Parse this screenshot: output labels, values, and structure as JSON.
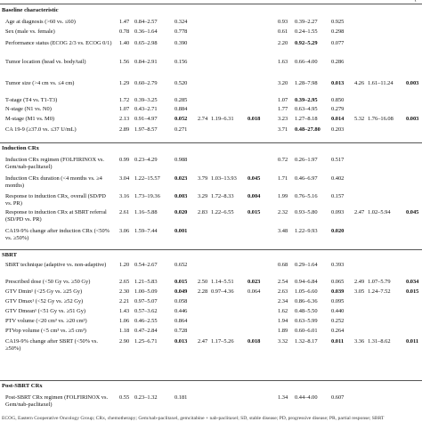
{
  "header_fragment": "p",
  "sections": [
    {
      "title": "Baseline characteristic",
      "rows": [
        {
          "label": "Age at diagnosis (>60 vs. ≤60)",
          "cells": [
            "1.47",
            "0.84–2.57",
            "0.324",
            "",
            "",
            "",
            "0.93",
            "0.39–2.27",
            "0.925",
            "",
            "",
            ""
          ]
        },
        {
          "label": "Sex (male vs. female)",
          "cells": [
            "0.78",
            "0.36–1.64",
            "0.778",
            "",
            "",
            "",
            "0.61",
            "0.24–1.55",
            "0.298",
            "",
            "",
            ""
          ]
        },
        {
          "label": "Performance status (ECOG 2/3 vs. ECOG 0/1)",
          "cells": [
            "1.40",
            "0.65–2.98",
            "0.390",
            "",
            "",
            "",
            "2.20",
            "0.92–5.29",
            "0.077",
            "",
            "",
            ""
          ]
        },
        {
          "label": "Tumor location (head vs. body/tail)",
          "cells": [
            "1.56",
            "0.84–2.91",
            "0.156",
            "",
            "",
            "",
            "1.63",
            "0.66–4.00",
            "0.286",
            "",
            "",
            ""
          ]
        },
        {
          "label": "Tumor size (>4 cm vs. ≤4 cm)",
          "cells": [
            "1.29",
            "0.60–2.79",
            "0.520",
            "",
            "",
            "",
            "3.20",
            "1.28–7.98",
            "0.013",
            "4.26",
            "1.61–11.24",
            "0.003"
          ]
        },
        {
          "label": "T-stage (T4 vs. T1-T3)",
          "cells": [
            "1.72",
            "0.39–3.25",
            "0.285",
            "",
            "",
            "",
            "1.07",
            "0.39–2.95",
            "0.850",
            "",
            "",
            ""
          ]
        },
        {
          "label": "N-stage (N1 vs. N0)",
          "cells": [
            "1.07",
            "0.43–2.71",
            "0.884",
            "",
            "",
            "",
            "1.77",
            "0.63–4.95",
            "0.279",
            "",
            "",
            ""
          ]
        },
        {
          "label": "M-stage (M1 vs. M0)",
          "cells": [
            "2.13",
            "0.91–4.97",
            "0.052",
            "2.74",
            "1.19–6.31",
            "0.018",
            "3.23",
            "1.27–8.18",
            "0.014",
            "5.32",
            "1.76–16.08",
            "0.003"
          ]
        },
        {
          "label": "CA 19-9 (≥37.0 vs. ≤37 U/mL)",
          "cells": [
            "2.89",
            "1.97–8.57",
            "0.271",
            "",
            "",
            "",
            "3.71",
            "0.48–27.80",
            "0.203",
            "",
            "",
            ""
          ]
        }
      ]
    },
    {
      "title": "Induction CRx",
      "rows": [
        {
          "label": "Induction CRx regimen (FOLFIRINOX vs. Gem/nab-paclitaxel)",
          "cells": [
            "0.99",
            "0.23–4.29",
            "0.988",
            "",
            "",
            "",
            "0.72",
            "0.26–1.97",
            "0.517",
            "",
            "",
            ""
          ]
        },
        {
          "label": "Induction CRx duration (<4 months vs. ≥4 months)",
          "cells": [
            "3.04",
            "1.22–15.57",
            "0.023",
            "3.79",
            "1.03–13.93",
            "0.045",
            "1.71",
            "0.46–6.97",
            "0.402",
            "",
            "",
            ""
          ]
        },
        {
          "label": "Response to induction CRx, overall (SD/PD vs. PR)",
          "cells": [
            "3.16",
            "1.73–19.36",
            "0.003",
            "3.29",
            "1.72–8.33",
            "0.004",
            "1.99",
            "0.76–5.16",
            "0.157",
            "",
            "",
            ""
          ]
        },
        {
          "label": "Response to induction CRx at SBRT referral (SD/PD vs. PR)",
          "cells": [
            "2.61",
            "1.16–5.88",
            "0.020",
            "2.83",
            "1.22–6.55",
            "0.015",
            "2.32",
            "0.93–5.80",
            "0.093",
            "2.47",
            "1.02–5.94",
            "0.045"
          ]
        },
        {
          "label": "CA19-9% change after induction CRx (<50% vs. ≥50%)",
          "cells": [
            "3.06",
            "1.59–7.44",
            "0.001",
            "",
            "",
            "",
            "3.48",
            "1.22–9.93",
            "0.020",
            "",
            "",
            ""
          ]
        }
      ]
    },
    {
      "title": "SBRT",
      "rows": [
        {
          "label": "SBRT technique (adaptive vs. non-adaptive)",
          "cells": [
            "1.20",
            "0.54–2.67",
            "0.652",
            "",
            "",
            "",
            "0.68",
            "0.29–1.64",
            "0.393",
            "",
            "",
            ""
          ]
        },
        {
          "label": "Prescribed dose (<50 Gy vs. ≥50 Gy)",
          "cells": [
            "2.65",
            "1.21–5.83",
            "0.015",
            "2.50",
            "1.14–5.51",
            "0.023",
            "2.54",
            "0.94–6.84",
            "0.065",
            "2.49",
            "1.07–5.79",
            "0.034"
          ]
        },
        {
          "label": "GTV Dmin¹ (<25 Gy vs. ≥25 Gy)",
          "cells": [
            "2.30",
            "1.00–5.09",
            "0.049",
            "2.28",
            "0.97–4.36",
            "0.064",
            "2.63",
            "1.05–6.60",
            "0.039",
            "3.05",
            "1.24–7.52",
            "0.015"
          ]
        },
        {
          "label": "GTV Dmax¹ (<52 Gy vs. ≥52 Gy)",
          "cells": [
            "2.21",
            "0.97–5.07",
            "0.058",
            "",
            "",
            "",
            "2.34",
            "0.86–6.36",
            "0.095",
            "",
            "",
            ""
          ]
        },
        {
          "label": "GTV Dmean¹ (<51 Gy vs. ≥51 Gy)",
          "cells": [
            "1.43",
            "0.57–3.62",
            "0.446",
            "",
            "",
            "",
            "1.62",
            "0.48–5.50",
            "0.440",
            "",
            "",
            ""
          ]
        },
        {
          "label": "PTV volume (<20 cm³ vs. ≥20 cm³)",
          "cells": [
            "1.06",
            "0.46–2.55",
            "0.864",
            "",
            "",
            "",
            "1.94",
            "0.63–5.99",
            "0.252",
            "",
            "",
            ""
          ]
        },
        {
          "label": "PTVop volume (<5 cm³ vs. ≥5 cm³)",
          "cells": [
            "1.18",
            "0.47–2.84",
            "0.728",
            "",
            "",
            "",
            "1.89",
            "0.60–6.01",
            "0.264",
            "",
            "",
            ""
          ]
        },
        {
          "label": "CA19-9% change after SBRT (<50% vs. ≥50%)",
          "cells": [
            "2.90",
            "1.25–6.71",
            "0.013",
            "2.47",
            "1.17–5.26",
            "0.018",
            "3.32",
            "1.32–8.17",
            "0.011",
            "3.36",
            "1.31–8.62",
            "0.011"
          ]
        }
      ]
    },
    {
      "title": "Post-SBRT CRx",
      "rows": [
        {
          "label": "Post-SBRT CRx regimen (FOLFIRINOX vs. Gem/nab-paclitaxel)",
          "cells": [
            "0.55",
            "0.23–1.32",
            "0.181",
            "",
            "",
            "",
            "1.34",
            "0.44–4.00",
            "0.607",
            "",
            "",
            ""
          ]
        }
      ]
    }
  ],
  "footer_text": "ECOG, Eastern Cooperative Oncology Group; CRx, chemotherapy; Gem/nab-paclitaxel, gemcitabine + nab-paclitaxel; SD, stable disease; PD, progressive disease; PR, partial response; SBRT"
}
